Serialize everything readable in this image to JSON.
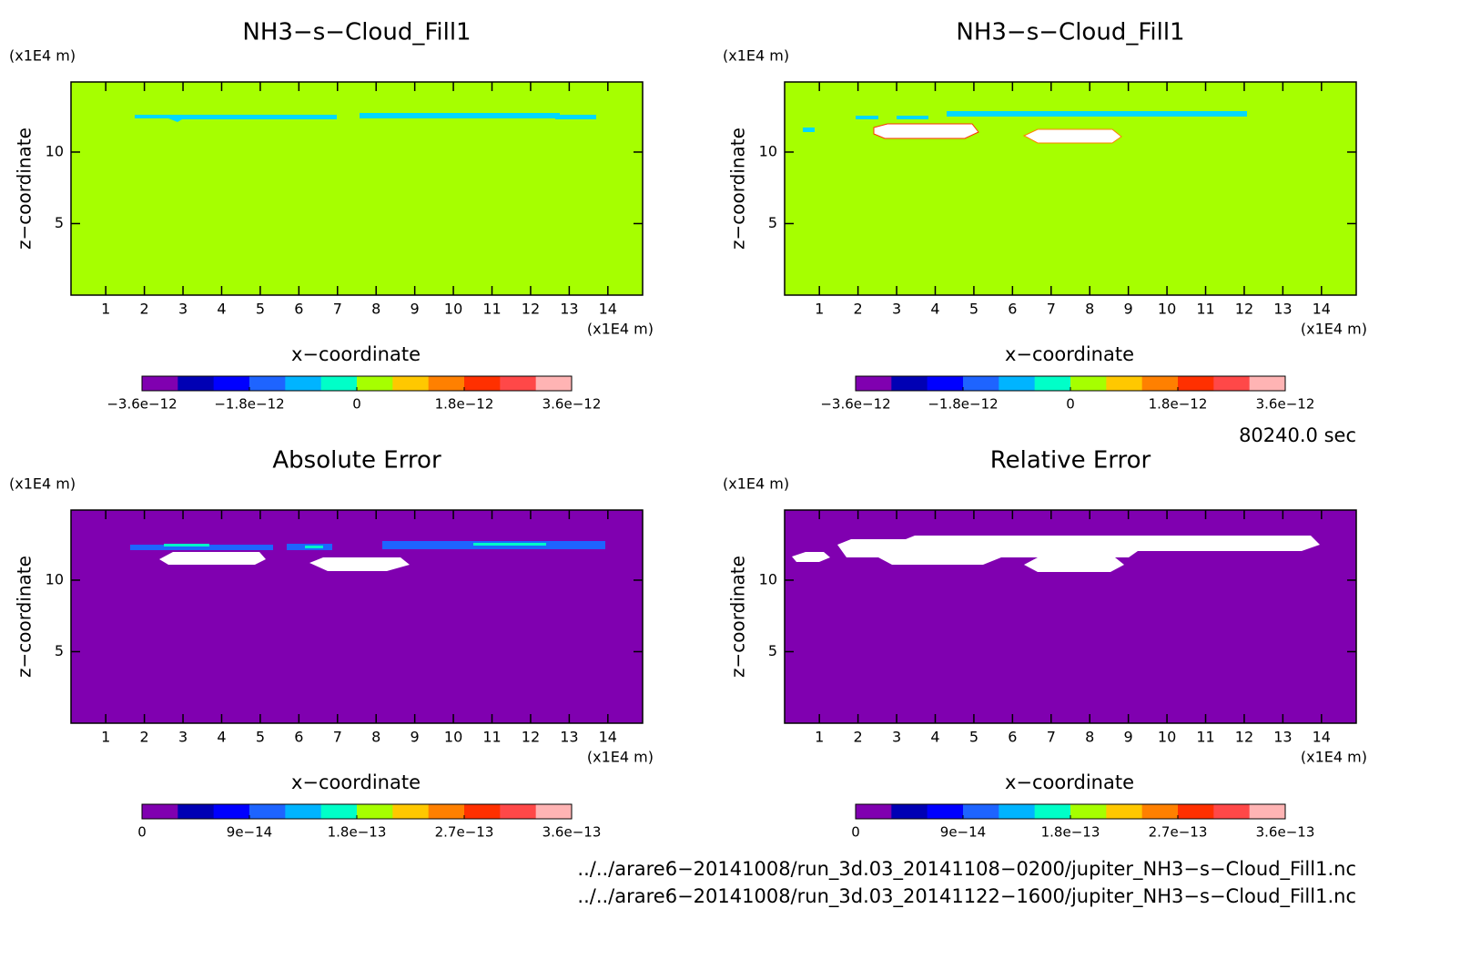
{
  "chart_data": [
    {
      "type": "contour",
      "title": "NH3−s−Cloud_Fill1",
      "xlabel": "x−coordinate",
      "ylabel": "z−coordinate",
      "x_unit": "(x1E4 m)",
      "y_unit": "(x1E4 m)",
      "xlim": [
        0.1,
        14.9
      ],
      "ylim": [
        0,
        14.9
      ],
      "xticks": [
        1,
        2,
        3,
        4,
        5,
        6,
        7,
        8,
        9,
        10,
        11,
        12,
        13,
        14
      ],
      "yticks": [
        5,
        10
      ],
      "fill": "#a6ff00",
      "colorbar": {
        "lim": [
          -3.6e-12,
          3.6e-12
        ],
        "colors": [
          "#8000b0",
          "#0000b4",
          "#0000ff",
          "#1e64ff",
          "#00b4ff",
          "#00ffc8",
          "#a6ff00",
          "#ffc800",
          "#ff8000",
          "#ff3000",
          "#ff4848",
          "#ffb4b4"
        ],
        "ticks": [
          {
            "value": -3.6e-12,
            "label": "−3.6e−12"
          },
          {
            "value": -1.8e-12,
            "label": "−1.8e−12"
          },
          0,
          {
            "value": 1.8e-12,
            "label": "1.8e−12"
          },
          {
            "value": 3.6e-12,
            "label": "3.6e−12"
          }
        ]
      }
    },
    {
      "type": "contour",
      "title": "NH3−s−Cloud_Fill1",
      "xlabel": "x−coordinate",
      "ylabel": "z−coordinate",
      "x_unit": "(x1E4 m)",
      "y_unit": "(x1E4 m)",
      "xlim": [
        0.1,
        14.9
      ],
      "ylim": [
        0,
        14.9
      ],
      "xticks": [
        1,
        2,
        3,
        4,
        5,
        6,
        7,
        8,
        9,
        10,
        11,
        12,
        13,
        14
      ],
      "yticks": [
        5,
        10
      ],
      "fill": "#a6ff00",
      "colorbar": {
        "lim": [
          -3.6e-12,
          3.6e-12
        ],
        "colors": [
          "#8000b0",
          "#0000b4",
          "#0000ff",
          "#1e64ff",
          "#00b4ff",
          "#00ffc8",
          "#a6ff00",
          "#ffc800",
          "#ff8000",
          "#ff3000",
          "#ff4848",
          "#ffb4b4"
        ],
        "ticks": [
          {
            "value": -3.6e-12,
            "label": "−3.6e−12"
          },
          {
            "value": -1.8e-12,
            "label": "−1.8e−12"
          },
          0,
          {
            "value": 1.8e-12,
            "label": "1.8e−12"
          },
          {
            "value": 3.6e-12,
            "label": "3.6e−12"
          }
        ]
      }
    },
    {
      "type": "contour",
      "title": "Absolute Error",
      "xlabel": "x−coordinate",
      "ylabel": "z−coordinate",
      "x_unit": "(x1E4 m)",
      "y_unit": "(x1E4 m)",
      "xlim": [
        0.1,
        14.9
      ],
      "ylim": [
        0,
        14.9
      ],
      "xticks": [
        1,
        2,
        3,
        4,
        5,
        6,
        7,
        8,
        9,
        10,
        11,
        12,
        13,
        14
      ],
      "yticks": [
        5,
        10
      ],
      "fill": "#8000b0",
      "colorbar": {
        "lim": [
          0,
          3.6e-13
        ],
        "colors": [
          "#8000b0",
          "#0000b4",
          "#0000ff",
          "#1e64ff",
          "#00b4ff",
          "#00ffc8",
          "#a6ff00",
          "#ffc800",
          "#ff8000",
          "#ff3000",
          "#ff4848",
          "#ffb4b4"
        ],
        "ticks": [
          0,
          {
            "value": 9e-14,
            "label": "9e−14"
          },
          {
            "value": 1.8e-13,
            "label": "1.8e−13"
          },
          {
            "value": 2.7e-13,
            "label": "2.7e−13"
          },
          {
            "value": 3.6e-13,
            "label": "3.6e−13"
          }
        ]
      }
    },
    {
      "type": "contour",
      "title": "Relative Error",
      "xlabel": "x−coordinate",
      "ylabel": "z−coordinate",
      "x_unit": "(x1E4 m)",
      "y_unit": "(x1E4 m)",
      "xlim": [
        0.1,
        14.9
      ],
      "ylim": [
        0,
        14.9
      ],
      "xticks": [
        1,
        2,
        3,
        4,
        5,
        6,
        7,
        8,
        9,
        10,
        11,
        12,
        13,
        14
      ],
      "yticks": [
        5,
        10
      ],
      "fill": "#8000b0",
      "colorbar": {
        "lim": [
          0,
          3.6e-13
        ],
        "colors": [
          "#8000b0",
          "#0000b4",
          "#0000ff",
          "#1e64ff",
          "#00b4ff",
          "#00ffc8",
          "#a6ff00",
          "#ffc800",
          "#ff8000",
          "#ff3000",
          "#ff4848",
          "#ffb4b4"
        ],
        "ticks": [
          0,
          {
            "value": 9e-14,
            "label": "9e−14"
          },
          {
            "value": 1.8e-13,
            "label": "1.8e−13"
          },
          {
            "value": 2.7e-13,
            "label": "2.7e−13"
          },
          {
            "value": 3.6e-13,
            "label": "3.6e−13"
          }
        ]
      }
    }
  ],
  "time": "80240.0 sec",
  "files": [
    "../../arare6−20141008/run_3d.03_20141108−0200/jupiter_NH3−s−Cloud_Fill1.nc",
    "../../arare6−20141008/run_3d.03_20141122−1600/jupiter_NH3−s−Cloud_Fill1.nc"
  ]
}
